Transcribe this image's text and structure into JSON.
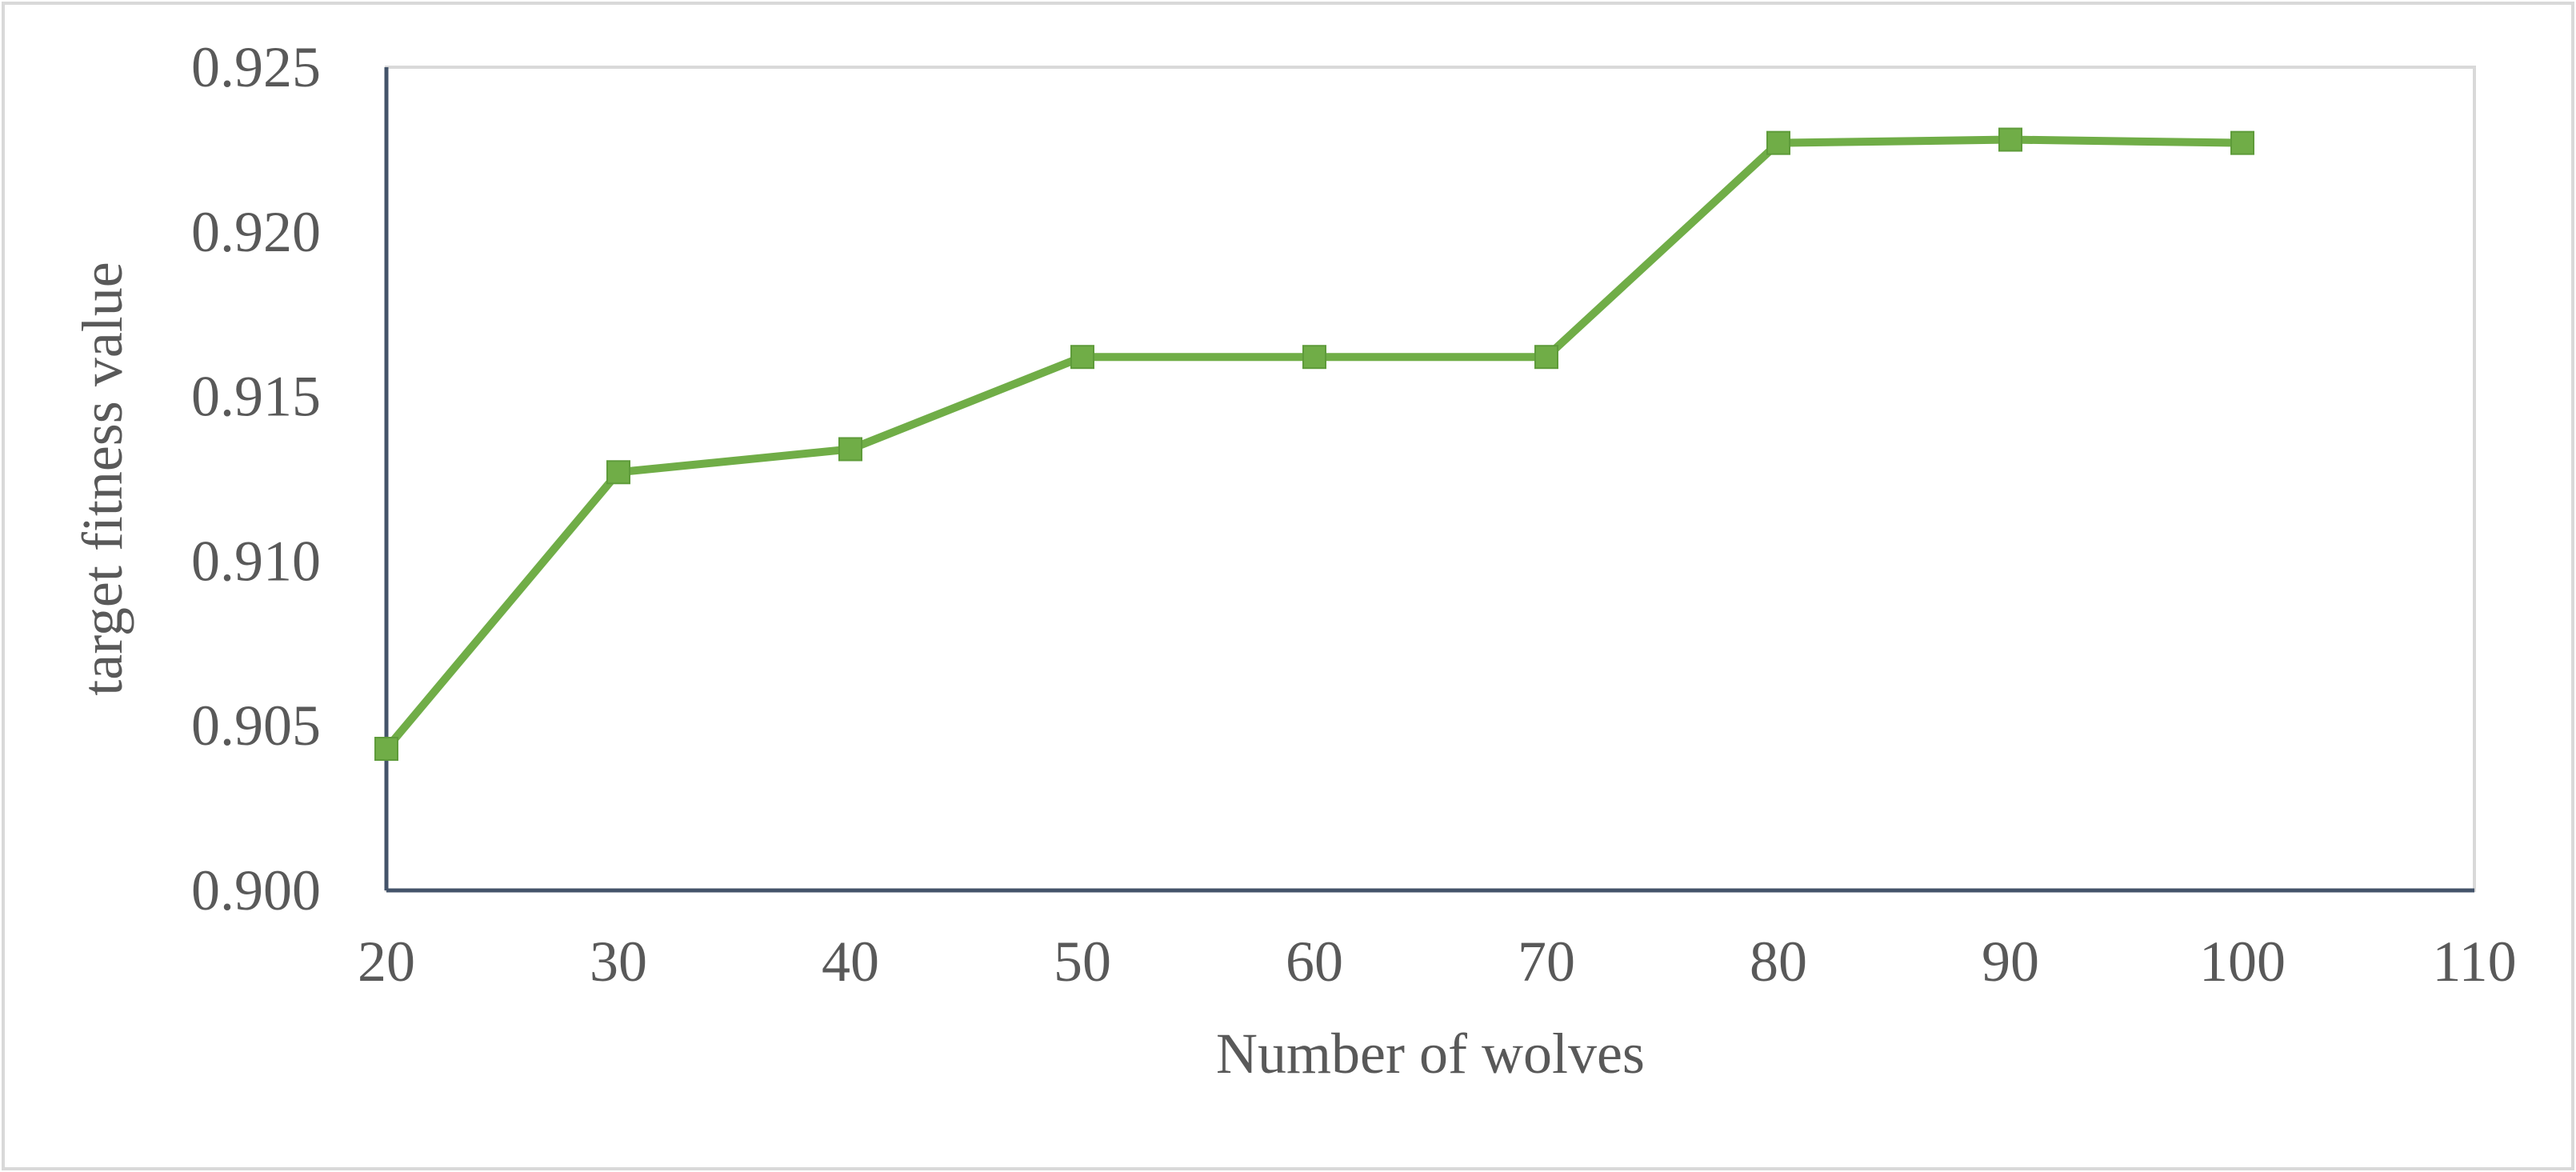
{
  "chart_data": {
    "type": "line",
    "title": "",
    "xlabel": "Number of wolves",
    "ylabel": "target fitness value",
    "x": [
      20,
      30,
      40,
      50,
      60,
      70,
      80,
      90,
      100
    ],
    "series": [
      {
        "values": [
          0.9043,
          0.9127,
          0.9134,
          0.9162,
          0.9162,
          0.9162,
          0.9227,
          0.9228,
          0.9227
        ],
        "color": "#70AD47"
      }
    ],
    "xlim": [
      20,
      110
    ],
    "ylim": [
      0.9,
      0.925
    ],
    "x_ticks": [
      "20",
      "30",
      "40",
      "50",
      "60",
      "70",
      "80",
      "90",
      "100",
      "110"
    ],
    "y_ticks": [
      "0.900",
      "0.905",
      "0.910",
      "0.915",
      "0.920",
      "0.925"
    ],
    "grid": false,
    "legend": "none",
    "axis_color": "#44546A",
    "frame_color": "#D9D9D9"
  }
}
